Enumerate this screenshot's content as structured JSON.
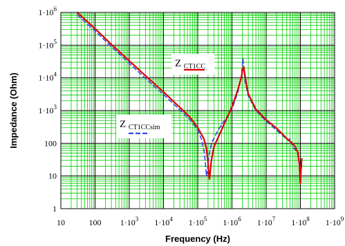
{
  "chart_data": {
    "type": "line",
    "xlabel": "Frequency (Hz)",
    "ylabel": "Impedance (Ohm)",
    "x_scale": "log",
    "y_scale": "log",
    "xlim": [
      10,
      1000000000
    ],
    "ylim": [
      1,
      1000000
    ],
    "grid": true,
    "grid_color": "#00cc00",
    "plot_background": "#ffffff",
    "x_ticks": [
      {
        "value": 10,
        "base": "10",
        "exp": ""
      },
      {
        "value": 100,
        "base": "100",
        "exp": ""
      },
      {
        "value": 1000,
        "base": "1·10",
        "exp": "3"
      },
      {
        "value": 10000,
        "base": "1·10",
        "exp": "4"
      },
      {
        "value": 100000,
        "base": "1·10",
        "exp": "5"
      },
      {
        "value": 1000000,
        "base": "1·10",
        "exp": "6"
      },
      {
        "value": 10000000,
        "base": "1·10",
        "exp": "7"
      },
      {
        "value": 100000000,
        "base": "1·10",
        "exp": "8"
      },
      {
        "value": 1000000000,
        "base": "1·10",
        "exp": "9"
      }
    ],
    "y_ticks": [
      {
        "value": 1,
        "base": "1",
        "exp": ""
      },
      {
        "value": 10,
        "base": "10",
        "exp": ""
      },
      {
        "value": 100,
        "base": "100",
        "exp": ""
      },
      {
        "value": 1000,
        "base": "1·10",
        "exp": "3"
      },
      {
        "value": 10000,
        "base": "1·10",
        "exp": "4"
      },
      {
        "value": 100000,
        "base": "1·10",
        "exp": "5"
      },
      {
        "value": 1000000,
        "base": "1·10",
        "exp": "6"
      }
    ],
    "series": [
      {
        "name_main": "Z",
        "name_sub": "CT1CC",
        "color": "#dd0000",
        "style": "solid",
        "points": [
          [
            30,
            1000000
          ],
          [
            100,
            320000
          ],
          [
            300,
            105000
          ],
          [
            1000,
            33000
          ],
          [
            3000,
            11500
          ],
          [
            10000,
            3700
          ],
          [
            30000,
            1250
          ],
          [
            60000,
            620
          ],
          [
            100000,
            300
          ],
          [
            150000,
            140
          ],
          [
            180000,
            70
          ],
          [
            200000,
            25
          ],
          [
            210000,
            12
          ],
          [
            220000,
            8
          ],
          [
            230000,
            12
          ],
          [
            250000,
            30
          ],
          [
            300000,
            80
          ],
          [
            500000,
            260
          ],
          [
            1000000,
            1300
          ],
          [
            1500000,
            4500
          ],
          [
            1900000,
            11000
          ],
          [
            2100000,
            20000
          ],
          [
            2200000,
            22000
          ],
          [
            2300000,
            16000
          ],
          [
            2600000,
            7000
          ],
          [
            3000000,
            3200
          ],
          [
            5000000,
            1100
          ],
          [
            10000000,
            520
          ],
          [
            20000000,
            290
          ],
          [
            40000000,
            140
          ],
          [
            55000000,
            105
          ],
          [
            70000000,
            80
          ],
          [
            85000000,
            50
          ],
          [
            95000000,
            20
          ],
          [
            100000000,
            6
          ],
          [
            105000000,
            20
          ],
          [
            110000000,
            35
          ]
        ]
      },
      {
        "name_main": "Z",
        "name_sub": "CT1CCsim",
        "color": "#3344ee",
        "style": "dashed",
        "points": [
          [
            30,
            850000
          ],
          [
            100,
            270000
          ],
          [
            300,
            90000
          ],
          [
            1000,
            28000
          ],
          [
            3000,
            9500
          ],
          [
            10000,
            3100
          ],
          [
            30000,
            1050
          ],
          [
            60000,
            520
          ],
          [
            100000,
            250
          ],
          [
            130000,
            130
          ],
          [
            155000,
            55
          ],
          [
            170000,
            20
          ],
          [
            180000,
            10
          ],
          [
            190000,
            13
          ],
          [
            210000,
            40
          ],
          [
            260000,
            110
          ],
          [
            400000,
            260
          ],
          [
            1000000,
            1100
          ],
          [
            1500000,
            3800
          ],
          [
            1900000,
            12000
          ],
          [
            2050000,
            30000
          ],
          [
            2100000,
            38000
          ],
          [
            2150000,
            28000
          ],
          [
            2400000,
            8000
          ],
          [
            3000000,
            2800
          ],
          [
            5000000,
            1000
          ],
          [
            10000000,
            480
          ],
          [
            20000000,
            250
          ],
          [
            35000000,
            150
          ],
          [
            45000000,
            120
          ],
          [
            50000000,
            140
          ],
          [
            60000000,
            75
          ],
          [
            75000000,
            60
          ],
          [
            85000000,
            50
          ],
          [
            95000000,
            15
          ],
          [
            100000000,
            7
          ],
          [
            110000000,
            25
          ]
        ]
      }
    ]
  }
}
